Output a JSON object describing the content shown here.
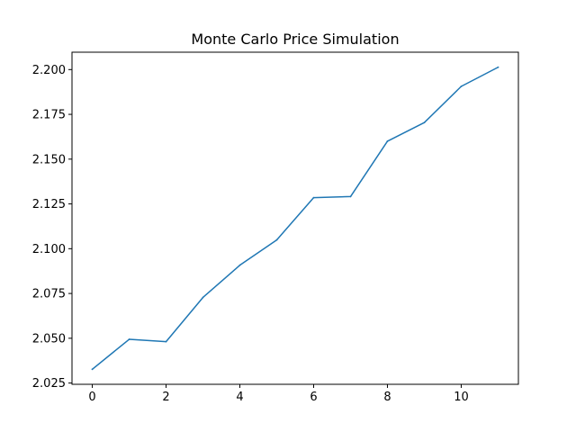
{
  "chart_data": {
    "type": "line",
    "title": "Monte Carlo Price Simulation",
    "xlabel": "",
    "ylabel": "",
    "x": [
      0,
      1,
      2,
      3,
      4,
      5,
      6,
      7,
      8,
      9,
      10,
      11
    ],
    "series": [
      {
        "values": [
          2.0327,
          2.0494,
          2.0481,
          2.0728,
          2.0908,
          2.1049,
          2.1285,
          2.1291,
          2.16,
          2.1704,
          2.1906,
          2.2013
        ],
        "color": "#1f77b4"
      }
    ],
    "xlim": [
      -0.55,
      11.55
    ],
    "ylim": [
      2.0243,
      2.2097
    ],
    "x_ticks": [
      0,
      2,
      4,
      6,
      8,
      10
    ],
    "x_tick_labels": [
      "0",
      "2",
      "4",
      "6",
      "8",
      "10"
    ],
    "y_ticks": [
      2.025,
      2.05,
      2.075,
      2.1,
      2.125,
      2.15,
      2.175,
      2.2
    ],
    "y_tick_labels": [
      "2.025",
      "2.050",
      "2.075",
      "2.100",
      "2.125",
      "2.150",
      "2.175",
      "2.200"
    ],
    "grid": false,
    "legend": "none"
  }
}
